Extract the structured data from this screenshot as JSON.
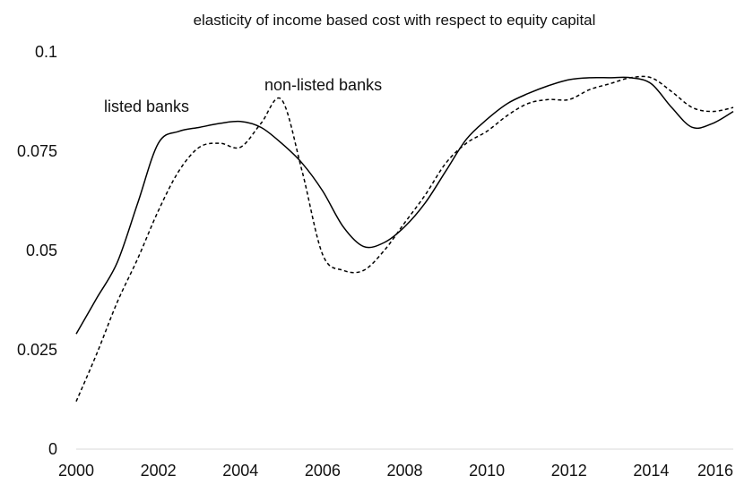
{
  "chart_data": {
    "type": "line",
    "title": "elasticity of income based cost with respect to equity capital",
    "xlabel": "",
    "ylabel": "",
    "xlim": [
      2000,
      2016
    ],
    "ylim": [
      0,
      0.1
    ],
    "x_ticks": [
      "2000",
      "2002",
      "2004",
      "2006",
      "2008",
      "2010",
      "2012",
      "2014",
      "2016"
    ],
    "y_ticks": [
      "0",
      "0.025",
      "0.05",
      "0.075",
      "0.1"
    ],
    "grid": false,
    "legend": "none",
    "series": [
      {
        "name": "listed banks",
        "line_style": "solid",
        "x": [
          2000,
          2000.5,
          2001,
          2001.5,
          2002,
          2002.5,
          2003,
          2003.5,
          2004,
          2004.5,
          2005,
          2005.5,
          2006,
          2006.5,
          2007,
          2007.5,
          2008,
          2008.5,
          2009,
          2009.5,
          2010,
          2010.5,
          2011,
          2011.5,
          2012,
          2012.5,
          2013,
          2013.5,
          2014,
          2014.5,
          2015,
          2015.5,
          2016
        ],
        "values": [
          0.029,
          0.038,
          0.047,
          0.062,
          0.077,
          0.08,
          0.081,
          0.082,
          0.0825,
          0.081,
          0.077,
          0.072,
          0.065,
          0.056,
          0.051,
          0.052,
          0.056,
          0.062,
          0.07,
          0.078,
          0.083,
          0.087,
          0.0895,
          0.0915,
          0.093,
          0.0935,
          0.0935,
          0.0935,
          0.092,
          0.086,
          0.081,
          0.082,
          0.085
        ]
      },
      {
        "name": "non-listed banks",
        "line_style": "dashed",
        "x": [
          2000,
          2000.5,
          2001,
          2001.5,
          2002,
          2002.5,
          2003,
          2003.5,
          2004,
          2004.5,
          2005,
          2005.5,
          2006,
          2006.5,
          2007,
          2007.5,
          2008,
          2008.5,
          2009,
          2009.5,
          2010,
          2010.5,
          2011,
          2011.5,
          2012,
          2012.5,
          2013,
          2013.5,
          2014,
          2014.5,
          2015,
          2015.5,
          2016
        ],
        "values": [
          0.012,
          0.024,
          0.037,
          0.048,
          0.06,
          0.07,
          0.076,
          0.077,
          0.076,
          0.082,
          0.088,
          0.07,
          0.049,
          0.045,
          0.045,
          0.05,
          0.057,
          0.064,
          0.072,
          0.077,
          0.08,
          0.084,
          0.087,
          0.088,
          0.088,
          0.0905,
          0.092,
          0.0935,
          0.0935,
          0.09,
          0.086,
          0.085,
          0.086
        ]
      }
    ],
    "annotations": [
      {
        "text": "listed banks",
        "near_series": "listed banks"
      },
      {
        "text": "non-listed banks",
        "near_series": "non-listed banks"
      }
    ]
  }
}
